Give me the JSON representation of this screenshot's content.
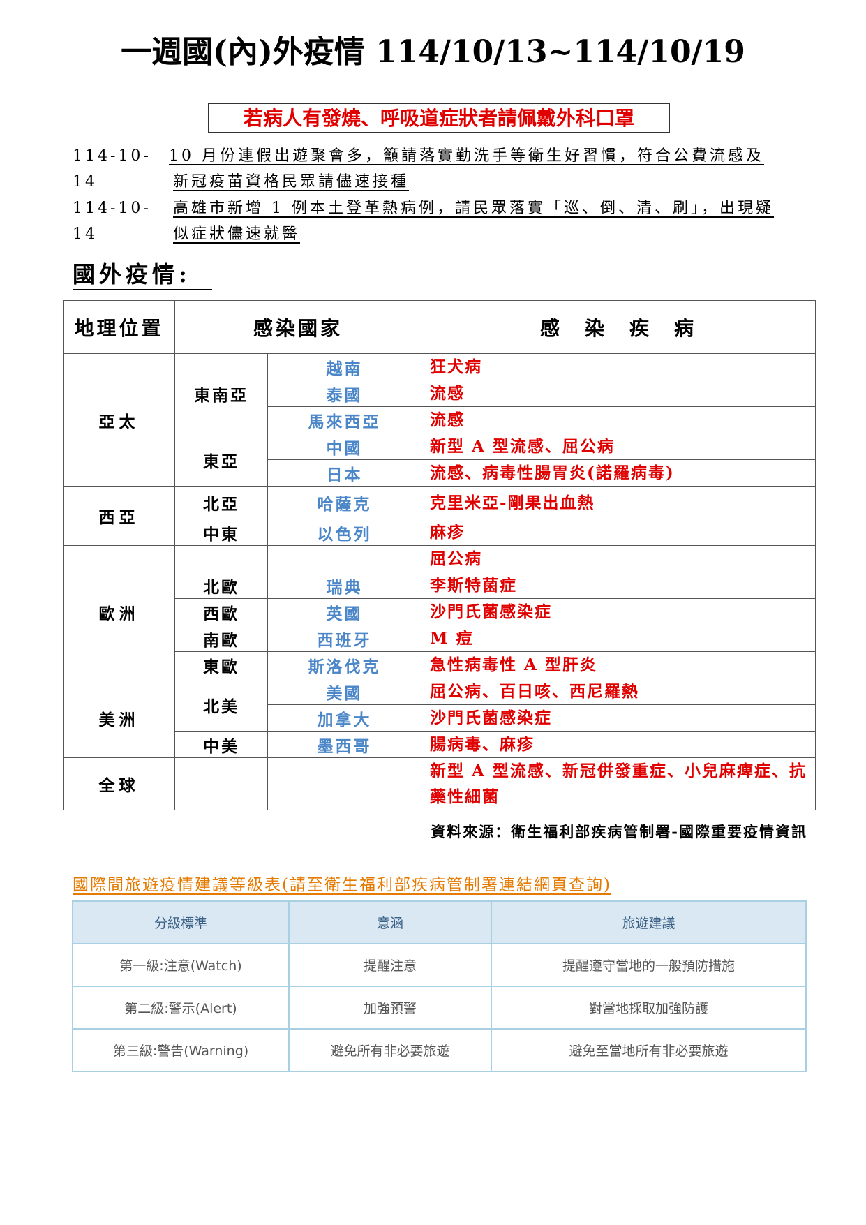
{
  "title": "一週國(內)外疫情 114/10/13~114/10/19",
  "notice": "若病人有發燒、呼吸道症狀者請佩戴外科口罩",
  "news": [
    {
      "date": "114-10-14",
      "line1": "10 月份連假出遊聚會多，籲請落實勤洗手等衛生好習慣，符合公費流感及",
      "line2": "新冠疫苗資格民眾請儘速接種"
    },
    {
      "date": "114-10-14",
      "line1": "高雄市新增 1 例本土登革熱病例，請民眾落實「巡、倒、清、刷」，出現疑",
      "line2": "似症狀儘速就醫"
    }
  ],
  "section_title": "國外疫情:",
  "table": {
    "headers": [
      "地理位置",
      "感染國家",
      "感　染　疾　病"
    ],
    "regions": {
      "asia_pacific": "亞太",
      "southeast_asia": "東南亞",
      "east_asia": "東亞",
      "west_asia": "西亞",
      "north_asia": "北亞",
      "middle_east": "中東",
      "europe": "歐洲",
      "north_europe": "北歐",
      "west_europe": "西歐",
      "south_europe": "南歐",
      "east_europe": "東歐",
      "americas": "美洲",
      "north_america": "北美",
      "central_america": "中美",
      "global": "全球"
    },
    "rows": [
      {
        "country": "越南",
        "disease": "狂犬病"
      },
      {
        "country": "泰國",
        "disease": "流感"
      },
      {
        "country": "馬來西亞",
        "disease": "流感"
      },
      {
        "country": "中國",
        "disease": "新型 A 型流感、屈公病"
      },
      {
        "country": "日本",
        "disease": "流感、病毒性腸胃炎(諾羅病毒)"
      },
      {
        "country": "哈薩克",
        "disease": "克里米亞-剛果出血熱"
      },
      {
        "country": "以色列",
        "disease": "麻疹"
      },
      {
        "country": "",
        "disease": "屈公病"
      },
      {
        "country": "瑞典",
        "disease": "李斯特菌症"
      },
      {
        "country": "英國",
        "disease": "沙門氏菌感染症"
      },
      {
        "country": "西班牙",
        "disease": "M 痘"
      },
      {
        "country": "斯洛伐克",
        "disease": "急性病毒性 A 型肝炎"
      },
      {
        "country": "美國",
        "disease": "屈公病、百日咳、西尼羅熱"
      },
      {
        "country": "加拿大",
        "disease": "沙門氏菌感染症"
      },
      {
        "country": "墨西哥",
        "disease": "腸病毒、麻疹"
      },
      {
        "country": "",
        "disease": "新型 A 型流感、新冠併發重症、小兒麻痺症、抗藥性細菌"
      }
    ]
  },
  "source": "資料來源：衛生福利部疾病管制署-國際重要疫情資訊",
  "travel_link": "國際間旅遊疫情建議等級表(請至衛生福利部疾病管制署連結網頁查詢)",
  "levels": {
    "headers": [
      "分級標準",
      "意涵",
      "旅遊建議"
    ],
    "rows": [
      [
        "第一級:注意(Watch)",
        "提醒注意",
        "提醒遵守當地的一般預防措施"
      ],
      [
        "第二級:警示(Alert)",
        "加強預警",
        "對當地採取加強防護"
      ],
      [
        "第三級:警告(Warning)",
        "避免所有非必要旅遊",
        "避免至當地所有非必要旅遊"
      ]
    ]
  },
  "colors": {
    "alert_red": "#e00000",
    "country_blue": "#4a86c8",
    "link_orange": "#e57a00",
    "level_header_bg": "#d9e8f2"
  }
}
